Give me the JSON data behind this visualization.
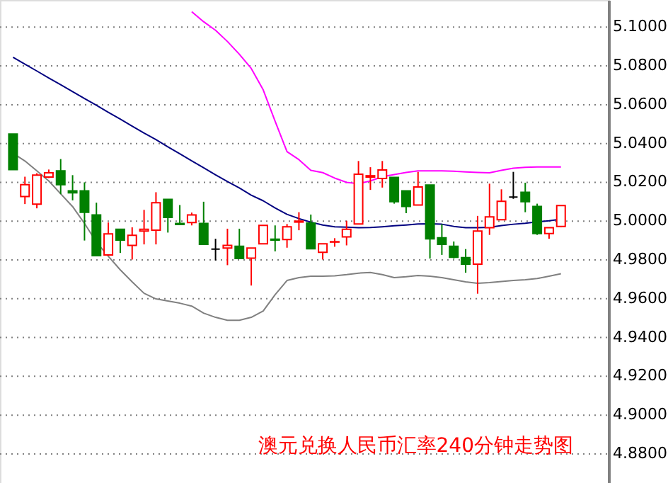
{
  "chart_data": {
    "type": "candlestick",
    "title": "澳元兑换人民币汇率240分钟走势图",
    "categories": [
      null,
      null,
      null,
      null,
      null,
      null,
      null,
      null,
      null,
      null,
      null,
      null,
      null,
      null,
      null,
      null,
      null,
      null,
      null,
      null,
      null,
      null,
      null,
      null,
      null,
      null,
      null,
      null,
      null,
      null,
      null,
      null,
      null,
      null,
      null,
      null,
      null,
      null,
      null,
      null,
      null,
      null,
      null,
      null,
      null,
      null,
      null
    ],
    "ohlc": [
      [
        5.0449,
        5.0449,
        5.0266,
        5.0266
      ],
      [
        5.0127,
        5.0229,
        5.0088,
        5.0188
      ],
      [
        5.0088,
        5.0247,
        5.0066,
        5.0237
      ],
      [
        5.0227,
        5.0266,
        5.0222,
        5.0249
      ],
      [
        5.0259,
        5.032,
        5.0139,
        5.0188
      ],
      [
        5.0156,
        5.0237,
        5.0107,
        5.0146
      ],
      [
        5.0156,
        5.02,
        4.99,
        5.0046
      ],
      [
        5.0032,
        5.0095,
        4.9822,
        4.9822
      ],
      [
        4.9826,
        4.9993,
        4.9826,
        4.9934
      ],
      [
        4.9958,
        4.9958,
        4.9836,
        4.9902
      ],
      [
        4.9875,
        4.9968,
        4.9802,
        4.9927
      ],
      [
        4.9949,
        5.0058,
        4.988,
        4.9958
      ],
      [
        4.9953,
        5.0149,
        4.988,
        5.0095
      ],
      [
        5.0112,
        5.0112,
        4.9941,
        5.0019
      ],
      [
        4.9988,
        5.0083,
        4.9983,
        4.9983
      ],
      [
        4.9993,
        5.0044,
        4.9978,
        5.0032
      ],
      [
        4.9988,
        5.01,
        4.988,
        4.988
      ],
      [
        4.9856,
        4.9909,
        4.9797,
        4.9856
      ],
      [
        4.9861,
        4.9961,
        4.9773,
        4.9875
      ],
      [
        4.987,
        4.9961,
        4.9807,
        4.9807
      ],
      [
        4.9809,
        4.9861,
        4.9668,
        4.9861
      ],
      [
        4.9883,
        4.9978,
        4.9883,
        4.9978
      ],
      [
        4.9907,
        4.9978,
        4.9844,
        4.9902
      ],
      [
        4.9905,
        4.9985,
        4.9863,
        4.9971
      ],
      [
        4.9995,
        5.0046,
        4.9953,
        5.0
      ],
      [
        4.999,
        5.0034,
        4.9858,
        4.9858
      ],
      [
        4.9839,
        4.9883,
        4.9802,
        4.9883
      ],
      [
        4.9892,
        4.9912,
        4.9868,
        4.9894
      ],
      [
        4.9919,
        5.0002,
        4.9875,
        4.9958
      ],
      [
        4.9985,
        5.031,
        4.9985,
        5.0242
      ],
      [
        5.0227,
        5.0278,
        5.0161,
        5.0234
      ],
      [
        5.022,
        5.031,
        5.0173,
        5.0264
      ],
      [
        5.0225,
        5.0225,
        5.009,
        5.01
      ],
      [
        5.0156,
        5.0156,
        5.0041,
        5.0076
      ],
      [
        5.0083,
        5.0254,
        5.0083,
        5.0176
      ],
      [
        5.0186,
        5.0186,
        4.9807,
        4.9909
      ],
      [
        4.9914,
        4.9985,
        4.9826,
        4.988
      ],
      [
        4.987,
        4.9895,
        4.9807,
        4.9814
      ],
      [
        4.9812,
        4.9856,
        4.9734,
        4.9778
      ],
      [
        4.9778,
        5.0027,
        4.9626,
        4.9949
      ],
      [
        4.9966,
        5.0193,
        4.9929,
        5.0022
      ],
      [
        5.0007,
        5.0164,
        5.0007,
        5.0102
      ],
      [
        5.0124,
        5.0254,
        5.0115,
        5.0124
      ],
      [
        5.0149,
        5.0198,
        5.0046,
        5.01
      ],
      [
        5.0076,
        5.009,
        4.9929,
        4.9936
      ],
      [
        4.9936,
        4.9966,
        4.9909,
        4.9966
      ],
      [
        4.9973,
        5.008,
        4.9968,
        5.008
      ]
    ],
    "colors": [
      "#008000",
      "#ff0000",
      "#ff0000",
      "#ff0000",
      "#008000",
      "#008000",
      "#008000",
      "#008000",
      "#ff0000",
      "#008000",
      "#ff0000",
      "#ff0000",
      "#ff0000",
      "#008000",
      "#008000",
      "#ff0000",
      "#008000",
      "#000000",
      "#ff0000",
      "#008000",
      "#ff0000",
      "#ff0000",
      "#008000",
      "#ff0000",
      "#ff0000",
      "#008000",
      "#ff0000",
      "#ff0000",
      "#ff0000",
      "#ff0000",
      "#ff0000",
      "#ff0000",
      "#008000",
      "#008000",
      "#ff0000",
      "#008000",
      "#008000",
      "#008000",
      "#008000",
      "#ff0000",
      "#ff0000",
      "#ff0000",
      "#000000",
      "#008000",
      "#008000",
      "#ff0000",
      "#ff0000"
    ],
    "series": [
      {
        "type": "line",
        "color": "#000080",
        "values": [
          5.0845,
          5.0809,
          5.0774,
          5.0738,
          5.0703,
          5.0668,
          5.0632,
          5.0597,
          5.0561,
          5.0526,
          5.049,
          5.0454,
          5.042,
          5.0383,
          5.0347,
          5.0311,
          5.0275,
          5.0239,
          5.0204,
          5.0171,
          5.0134,
          5.0105,
          5.0068,
          5.0035,
          5.0013,
          4.9995,
          4.998,
          4.9971,
          4.9969,
          4.9966,
          4.9967,
          4.9971,
          4.9976,
          4.998,
          4.9985,
          4.9986,
          4.9984,
          4.9973,
          4.9966,
          4.9966,
          4.9968,
          4.9977,
          4.9984,
          4.9989,
          4.9996,
          5.0002,
          5.001
        ]
      },
      {
        "type": "line",
        "color": "#ff00ff",
        "values": [
          null,
          null,
          null,
          null,
          null,
          null,
          null,
          null,
          null,
          null,
          null,
          null,
          null,
          null,
          null,
          5.108,
          5.1028,
          5.0984,
          5.0926,
          5.086,
          5.0787,
          5.0677,
          5.0515,
          5.0358,
          5.0317,
          5.0262,
          5.025,
          5.0222,
          5.02,
          5.0193,
          5.0207,
          5.0229,
          5.024,
          5.0251,
          5.0259,
          5.0259,
          5.0259,
          5.0257,
          5.0254,
          5.0251,
          5.0249,
          5.0262,
          5.0273,
          5.0277,
          5.0279,
          5.0279,
          5.0279
        ]
      },
      {
        "type": "line",
        "color": "#808080",
        "values": [
          5.035,
          5.031,
          5.0259,
          5.0207,
          5.0141,
          5.0075,
          4.9988,
          4.9892,
          4.9819,
          4.9749,
          4.9687,
          4.9628,
          4.9599,
          4.9588,
          4.9577,
          4.9562,
          4.9526,
          4.9504,
          4.9489,
          4.9489,
          4.9504,
          4.9537,
          4.9621,
          4.9694,
          4.9709,
          4.9716,
          4.9716,
          4.9718,
          4.9724,
          4.9732,
          4.9735,
          4.9724,
          4.9709,
          4.9713,
          4.972,
          4.9716,
          4.9709,
          4.9698,
          4.9687,
          4.968,
          4.9683,
          4.9689,
          4.9694,
          4.9698,
          4.9704,
          4.9716,
          4.9729
        ]
      }
    ],
    "ylim": [
      4.865,
      5.114
    ],
    "yticks": [
      {
        "value": 4.88,
        "label": "4.8800"
      },
      {
        "value": 4.9,
        "label": "4.9000"
      },
      {
        "value": 4.92,
        "label": "4.9200"
      },
      {
        "value": 4.94,
        "label": "4.9400"
      },
      {
        "value": 4.96,
        "label": "4.9600"
      },
      {
        "value": 4.98,
        "label": "4.9800"
      },
      {
        "value": 5.0,
        "label": "5.0000"
      },
      {
        "value": 5.02,
        "label": "5.0200"
      },
      {
        "value": 5.04,
        "label": "5.0400"
      },
      {
        "value": 5.06,
        "label": "5.0600"
      },
      {
        "value": 5.08,
        "label": "5.0800"
      },
      {
        "value": 5.1,
        "label": "5.1000"
      }
    ],
    "grid": "y"
  }
}
